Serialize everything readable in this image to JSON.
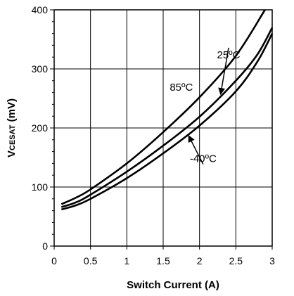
{
  "chart_data": {
    "type": "line",
    "title": "",
    "xlabel": "Switch Current (A)",
    "ylabel_main": "V",
    "ylabel_sub": "CESAT",
    "ylabel_unit": " (mV)",
    "xlim": [
      0,
      3
    ],
    "ylim": [
      0,
      400
    ],
    "xticks": [
      0,
      0.5,
      1,
      1.5,
      2,
      2.5,
      3
    ],
    "xtick_labels": [
      "0",
      "0.5",
      "1",
      "1.5",
      "2",
      "2.5",
      "3"
    ],
    "yticks": [
      0,
      100,
      200,
      300,
      400
    ],
    "ytick_labels": [
      "0",
      "100",
      "200",
      "300",
      "400"
    ],
    "grid": true,
    "line_color": "#000000",
    "series": [
      {
        "name": "85ºC",
        "x": [
          0.1,
          0.3,
          0.5,
          1.0,
          1.5,
          2.0,
          2.5,
          2.9
        ],
        "values": [
          71,
          82,
          96,
          140,
          193,
          252,
          322,
          400
        ]
      },
      {
        "name": "25ºC",
        "x": [
          0.1,
          0.3,
          0.5,
          1.0,
          1.5,
          2.0,
          2.5,
          2.8,
          3.0
        ],
        "values": [
          66,
          74,
          87,
          126,
          170,
          219,
          280,
          325,
          370
        ]
      },
      {
        "name": "-40ºC",
        "x": [
          0.1,
          0.3,
          0.5,
          1.0,
          1.5,
          2.0,
          2.5,
          2.8,
          3.0
        ],
        "values": [
          62,
          69,
          80,
          115,
          157,
          204,
          262,
          313,
          360
        ]
      }
    ],
    "annotations": [
      {
        "text": "25ºC",
        "label_x": 2.4,
        "label_y": 318,
        "target_x": 2.29,
        "target_y": 257
      },
      {
        "text": "85ºC",
        "label_x": 1.75,
        "label_y": 263
      },
      {
        "text": "-40ºC",
        "label_x": 2.05,
        "label_y": 142,
        "target_x": 1.85,
        "target_y": 187
      }
    ]
  }
}
